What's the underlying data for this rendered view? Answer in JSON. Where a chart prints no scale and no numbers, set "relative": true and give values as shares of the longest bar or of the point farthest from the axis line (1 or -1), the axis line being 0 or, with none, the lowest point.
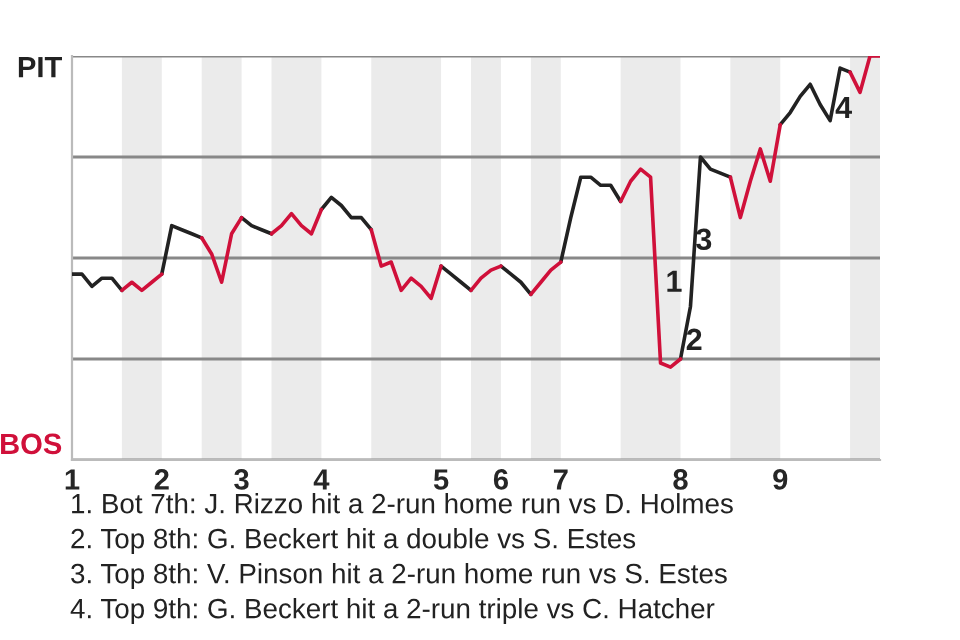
{
  "chart_data": {
    "type": "line",
    "categories": [
      "1",
      null,
      null,
      null,
      null,
      null,
      null,
      null,
      null,
      "2",
      null,
      null,
      null,
      null,
      null,
      null,
      null,
      "3",
      null,
      null,
      null,
      null,
      null,
      null,
      null,
      "4",
      null,
      null,
      null,
      null,
      null,
      null,
      null,
      null,
      null,
      null,
      null,
      "5",
      null,
      null,
      null,
      null,
      null,
      "6",
      null,
      null,
      null,
      null,
      null,
      "7",
      null,
      null,
      null,
      null,
      null,
      null,
      null,
      null,
      null,
      null,
      null,
      "8",
      null,
      null,
      null,
      null,
      null,
      null,
      null,
      null,
      null,
      "9",
      null,
      null,
      null,
      null,
      null,
      null,
      null,
      null,
      null,
      null
    ],
    "relative": true,
    "series": [
      {
        "name": "PIT",
        "color": "#222222",
        "values": [
          0.46,
          0.46,
          0.43,
          0.45,
          0.45,
          0.42,
          null,
          null,
          null,
          0.46,
          0.58,
          0.57,
          0.56,
          0.55,
          null,
          null,
          null,
          0.6,
          0.58,
          0.57,
          0.56,
          null,
          null,
          null,
          null,
          0.62,
          0.65,
          0.63,
          0.6,
          0.6,
          0.57,
          null,
          null,
          null,
          null,
          null,
          null,
          0.48,
          0.46,
          0.44,
          0.42,
          null,
          null,
          0.48,
          0.46,
          0.44,
          0.41,
          null,
          null,
          0.49,
          0.6,
          0.7,
          0.7,
          0.68,
          0.68,
          0.64,
          null,
          null,
          null,
          null,
          null,
          0.25,
          0.38,
          0.75,
          0.72,
          0.71,
          0.7,
          null,
          null,
          null,
          null,
          0.83,
          0.86,
          0.9,
          0.93,
          0.88,
          0.84,
          0.97,
          0.96,
          null,
          null,
          null
        ]
      },
      {
        "name": "BOS",
        "color": "#d0103a",
        "values": [
          null,
          null,
          null,
          null,
          null,
          0.42,
          0.44,
          0.42,
          0.44,
          0.46,
          null,
          null,
          null,
          0.55,
          0.51,
          0.44,
          0.56,
          0.6,
          null,
          null,
          0.56,
          0.58,
          0.61,
          0.58,
          0.56,
          0.62,
          null,
          null,
          null,
          null,
          0.57,
          0.48,
          0.49,
          0.42,
          0.45,
          0.43,
          0.4,
          0.48,
          null,
          null,
          0.42,
          0.45,
          0.47,
          0.48,
          null,
          null,
          0.41,
          0.44,
          0.47,
          0.49,
          null,
          null,
          null,
          null,
          null,
          0.64,
          0.69,
          0.72,
          0.7,
          0.24,
          0.23,
          0.25,
          null,
          null,
          null,
          null,
          0.7,
          0.6,
          0.69,
          0.77,
          0.69,
          0.83,
          null,
          null,
          null,
          null,
          null,
          null,
          0.96,
          0.91,
          1.0,
          1.0
        ]
      }
    ],
    "grid": "y",
    "legend": false,
    "annotations": [
      "1",
      "2",
      "3",
      "4",
      "1. Bot 7th: J. Rizzo hit a 2-run home run vs D. Holmes",
      "2. Top 8th: G. Beckert hit a double vs S. Estes",
      "3. Top 8th: V. Pinson hit a 2-run home run vs S. Estes",
      "4. Top 9th: G. Beckert hit a 2-run triple vs C. Hatcher"
    ]
  }
}
